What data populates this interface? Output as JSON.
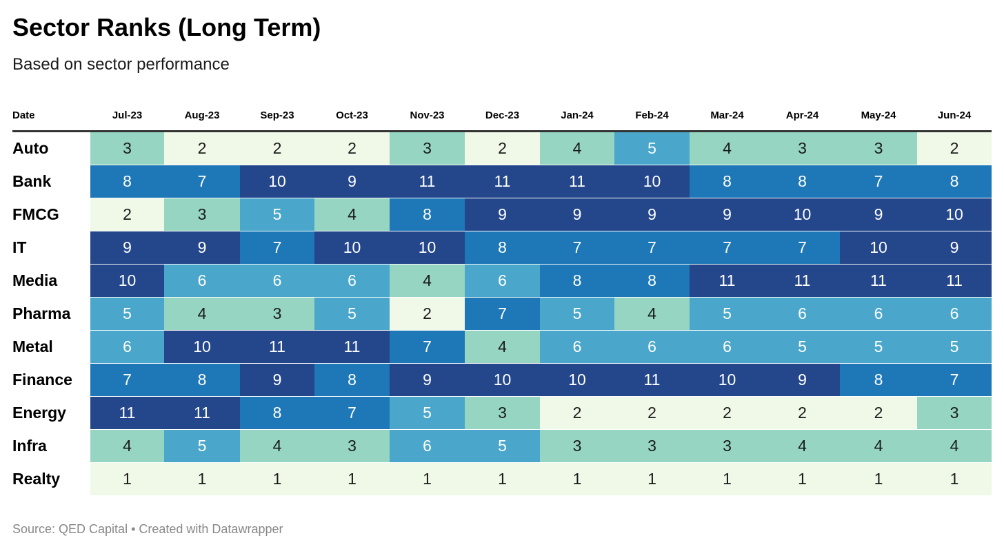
{
  "title": "Sector Ranks (Long Term)",
  "subtitle": "Based on sector performance",
  "footer": "Source: QED Capital • Created with Datawrapper",
  "colors": {
    "rank_1": "#f0f8e8",
    "rank_2": "#f0f8e8",
    "rank_3": "#95d5c1",
    "rank_4": "#95d5c1",
    "rank_5": "#4aa7cb",
    "rank_6": "#4aa7cb",
    "rank_7": "#1e77b6",
    "rank_8": "#1e77b6",
    "rank_9": "#24478c",
    "rank_10": "#24478c",
    "rank_11": "#24478c",
    "dark_text": "#1a1a1a",
    "light_text": "#ffffff"
  },
  "chart_data": {
    "type": "heatmap",
    "title": "Sector Ranks (Long Term)",
    "subtitle": "Based on sector performance",
    "row_header": "Date",
    "columns": [
      "Jul-23",
      "Aug-23",
      "Sep-23",
      "Oct-23",
      "Nov-23",
      "Dec-23",
      "Jan-24",
      "Feb-24",
      "Mar-24",
      "Apr-24",
      "May-24",
      "Jun-24"
    ],
    "rows": [
      {
        "name": "Auto",
        "values": [
          3,
          2,
          2,
          2,
          3,
          2,
          4,
          5,
          4,
          3,
          3,
          2
        ]
      },
      {
        "name": "Bank",
        "values": [
          8,
          7,
          10,
          9,
          11,
          11,
          11,
          10,
          8,
          8,
          7,
          8
        ]
      },
      {
        "name": "FMCG",
        "values": [
          2,
          3,
          5,
          4,
          8,
          9,
          9,
          9,
          9,
          10,
          9,
          10
        ]
      },
      {
        "name": "IT",
        "values": [
          9,
          9,
          7,
          10,
          10,
          8,
          7,
          7,
          7,
          7,
          10,
          9
        ]
      },
      {
        "name": "Media",
        "values": [
          10,
          6,
          6,
          6,
          4,
          6,
          8,
          8,
          11,
          11,
          11,
          11
        ]
      },
      {
        "name": "Pharma",
        "values": [
          5,
          4,
          3,
          5,
          2,
          7,
          5,
          4,
          5,
          6,
          6,
          6
        ]
      },
      {
        "name": "Metal",
        "values": [
          6,
          10,
          11,
          11,
          7,
          4,
          6,
          6,
          6,
          5,
          5,
          5
        ]
      },
      {
        "name": "Finance",
        "values": [
          7,
          8,
          9,
          8,
          9,
          10,
          10,
          11,
          10,
          9,
          8,
          7
        ]
      },
      {
        "name": "Energy",
        "values": [
          11,
          11,
          8,
          7,
          5,
          3,
          2,
          2,
          2,
          2,
          2,
          3
        ]
      },
      {
        "name": "Infra",
        "values": [
          4,
          5,
          4,
          3,
          6,
          5,
          3,
          3,
          3,
          4,
          4,
          4
        ]
      },
      {
        "name": "Realty",
        "values": [
          1,
          1,
          1,
          1,
          1,
          1,
          1,
          1,
          1,
          1,
          1,
          1
        ]
      }
    ],
    "source": "Source: QED Capital • Created with Datawrapper"
  }
}
